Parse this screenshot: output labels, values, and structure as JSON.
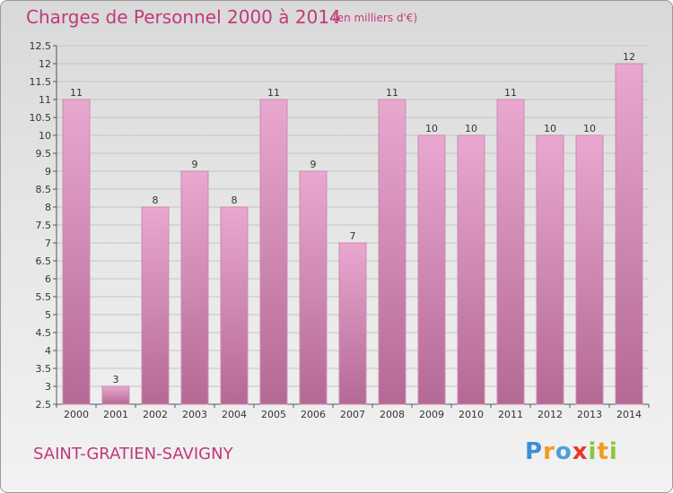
{
  "header": {
    "title": "Charges de Personnel 2000 à 2014",
    "subtitle": "(en milliers d'€)"
  },
  "footer": {
    "commune": "SAINT-GRATIEN-SAVIGNY",
    "logo_text": "Proxiti",
    "logo_letters": [
      {
        "char": "P",
        "color": "#3a8fd6"
      },
      {
        "char": "r",
        "color": "#f39b1f"
      },
      {
        "char": "o",
        "color": "#4aa0d8"
      },
      {
        "char": "x",
        "color": "#e8392b"
      },
      {
        "char": "i",
        "color": "#8cc63e"
      },
      {
        "char": "t",
        "color": "#f39b1f"
      },
      {
        "char": "i",
        "color": "#8cc63e"
      }
    ]
  },
  "colors": {
    "bar_top": "#e9a8d0",
    "bar_bottom": "#b46994",
    "bar_stroke": "#c98ab0",
    "grid": "#c4c4c4",
    "axis": "#555555",
    "title": "#c2397a"
  },
  "chart_data": {
    "type": "bar",
    "categories": [
      "2000",
      "2001",
      "2002",
      "2003",
      "2004",
      "2005",
      "2006",
      "2007",
      "2008",
      "2009",
      "2010",
      "2011",
      "2012",
      "2013",
      "2014"
    ],
    "values": [
      11,
      3,
      8,
      9,
      8,
      11,
      9,
      7,
      11,
      10,
      10,
      11,
      10,
      10,
      12
    ],
    "value_labels": [
      "11",
      "3",
      "8",
      "9",
      "8",
      "11",
      "9",
      "7",
      "11",
      "10",
      "10",
      "11",
      "10",
      "10",
      "12"
    ],
    "ylim": [
      2.5,
      12.5
    ],
    "yticks": [
      2.5,
      3,
      3.5,
      4,
      4.5,
      5,
      5.5,
      6,
      6.5,
      7,
      7.5,
      8,
      8.5,
      9,
      9.5,
      10,
      10.5,
      11,
      11.5,
      12,
      12.5
    ],
    "ytick_labels": [
      "2.5",
      "3",
      "3.5",
      "4",
      "4.5",
      "5",
      "5.5",
      "6",
      "6.5",
      "7",
      "7.5",
      "8",
      "8.5",
      "9",
      "9.5",
      "10",
      "10.5",
      "11",
      "11.5",
      "12",
      "12.5"
    ],
    "grid": true,
    "legend": "none"
  }
}
